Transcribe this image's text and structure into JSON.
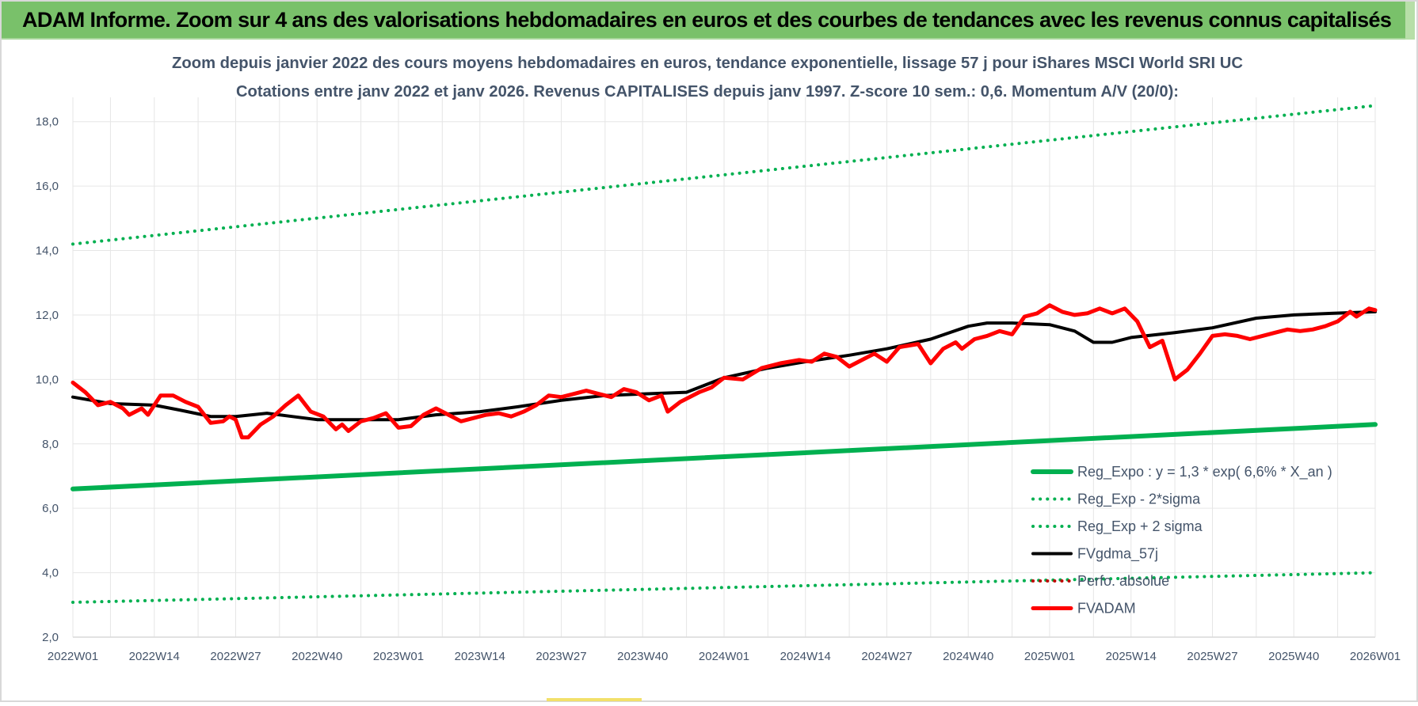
{
  "banner": {
    "title": "ADAM Informe. Zoom sur 4 ans des valorisations hebdomadaires en euros et des courbes de tendances avec les revenus connus capitalisés",
    "color": "#79c16a"
  },
  "chart_data": {
    "type": "line",
    "title": "Zoom depuis janvier 2022 des cours moyens hebdomadaires en euros, tendance exponentielle, lissage 57 j pour iShares MSCI World SRI UC",
    "subtitle": "Cotations entre janv 2022 et janv 2026. Revenus CAPITALISES depuis janv 1997. Z-score 10 sem.: 0,6. Momentum A/V (20/0):",
    "xlabel": "",
    "ylabel": "",
    "ylim": [
      2.0,
      19.0
    ],
    "yticks": [
      "2,0",
      "4,0",
      "6,0",
      "8,0",
      "10,0",
      "12,0",
      "14,0",
      "16,0",
      "18,0"
    ],
    "xticks": [
      "2022W01",
      "2022W14",
      "2022W27",
      "2022W40",
      "2023W01",
      "2023W14",
      "2023W27",
      "2023W40",
      "2024W01",
      "2024W14",
      "2024W27",
      "2024W40",
      "2025W01",
      "2025W14",
      "2025W27",
      "2025W40",
      "2026W01"
    ],
    "grid": true,
    "legend_position": "bottom-right",
    "x_weeks": [
      0,
      6,
      13,
      20,
      26,
      33,
      39,
      46,
      52,
      59,
      65,
      72,
      78,
      85,
      91,
      98,
      104,
      111,
      117,
      124,
      130,
      137,
      143,
      150,
      156,
      163,
      169,
      176,
      182,
      189,
      195,
      202,
      208
    ],
    "series": [
      {
        "name": "Reg_Expo : y = 1,3 * exp( 6,6% *  X_an )",
        "style": "solid",
        "color": "#00b050",
        "width": 6,
        "points": [
          [
            0,
            6.6
          ],
          [
            208,
            8.6
          ]
        ]
      },
      {
        "name": "Reg_Exp - 2*sigma",
        "style": "dotted",
        "color": "#00b050",
        "width": 4,
        "points": [
          [
            0,
            3.08
          ],
          [
            208,
            4.0
          ]
        ]
      },
      {
        "name": "Reg_Exp + 2 sigma",
        "style": "dotted",
        "color": "#00b050",
        "width": 4,
        "points": [
          [
            0,
            14.2
          ],
          [
            208,
            18.5
          ]
        ]
      },
      {
        "name": "FVgdma_57j",
        "style": "solid",
        "color": "#000000",
        "width": 4,
        "points": [
          [
            0,
            9.45
          ],
          [
            6,
            9.25
          ],
          [
            13,
            9.2
          ],
          [
            17,
            9.05
          ],
          [
            22,
            8.85
          ],
          [
            26,
            8.85
          ],
          [
            31,
            8.95
          ],
          [
            35,
            8.85
          ],
          [
            39,
            8.75
          ],
          [
            44,
            8.75
          ],
          [
            52,
            8.75
          ],
          [
            58,
            8.9
          ],
          [
            65,
            9.0
          ],
          [
            71,
            9.15
          ],
          [
            78,
            9.35
          ],
          [
            85,
            9.5
          ],
          [
            91,
            9.55
          ],
          [
            98,
            9.6
          ],
          [
            104,
            10.05
          ],
          [
            111,
            10.35
          ],
          [
            117,
            10.55
          ],
          [
            124,
            10.75
          ],
          [
            130,
            10.95
          ],
          [
            137,
            11.25
          ],
          [
            143,
            11.65
          ],
          [
            146,
            11.75
          ],
          [
            150,
            11.75
          ],
          [
            156,
            11.7
          ],
          [
            160,
            11.5
          ],
          [
            163,
            11.15
          ],
          [
            166,
            11.15
          ],
          [
            169,
            11.3
          ],
          [
            176,
            11.45
          ],
          [
            182,
            11.6
          ],
          [
            189,
            11.9
          ],
          [
            195,
            12.0
          ],
          [
            201,
            12.05
          ],
          [
            208,
            12.1
          ]
        ]
      },
      {
        "name": "Perfo. absolue",
        "style": "dotted",
        "color": "#c00000",
        "width": 4,
        "points": []
      },
      {
        "name": "FVADAM",
        "style": "solid",
        "color": "#ff0000",
        "width": 5,
        "points": [
          [
            0,
            9.9
          ],
          [
            2,
            9.6
          ],
          [
            4,
            9.2
          ],
          [
            6,
            9.3
          ],
          [
            8,
            9.1
          ],
          [
            9,
            8.9
          ],
          [
            11,
            9.1
          ],
          [
            12,
            8.9
          ],
          [
            14,
            9.5
          ],
          [
            16,
            9.5
          ],
          [
            18,
            9.3
          ],
          [
            20,
            9.15
          ],
          [
            22,
            8.65
          ],
          [
            24,
            8.7
          ],
          [
            25,
            8.85
          ],
          [
            26,
            8.75
          ],
          [
            27,
            8.2
          ],
          [
            28,
            8.2
          ],
          [
            30,
            8.6
          ],
          [
            32,
            8.85
          ],
          [
            34,
            9.2
          ],
          [
            36,
            9.5
          ],
          [
            38,
            9.0
          ],
          [
            40,
            8.85
          ],
          [
            42,
            8.45
          ],
          [
            43,
            8.6
          ],
          [
            44,
            8.4
          ],
          [
            46,
            8.7
          ],
          [
            48,
            8.8
          ],
          [
            50,
            8.95
          ],
          [
            52,
            8.5
          ],
          [
            54,
            8.55
          ],
          [
            56,
            8.9
          ],
          [
            58,
            9.1
          ],
          [
            60,
            8.9
          ],
          [
            62,
            8.7
          ],
          [
            64,
            8.8
          ],
          [
            66,
            8.9
          ],
          [
            68,
            8.95
          ],
          [
            70,
            8.85
          ],
          [
            72,
            9.0
          ],
          [
            74,
            9.2
          ],
          [
            76,
            9.5
          ],
          [
            78,
            9.45
          ],
          [
            80,
            9.55
          ],
          [
            82,
            9.65
          ],
          [
            84,
            9.55
          ],
          [
            86,
            9.45
          ],
          [
            88,
            9.7
          ],
          [
            90,
            9.6
          ],
          [
            92,
            9.35
          ],
          [
            94,
            9.5
          ],
          [
            95,
            9.0
          ],
          [
            97,
            9.3
          ],
          [
            100,
            9.6
          ],
          [
            102,
            9.75
          ],
          [
            104,
            10.05
          ],
          [
            107,
            10.0
          ],
          [
            110,
            10.35
          ],
          [
            113,
            10.5
          ],
          [
            116,
            10.6
          ],
          [
            118,
            10.55
          ],
          [
            120,
            10.8
          ],
          [
            122,
            10.7
          ],
          [
            124,
            10.4
          ],
          [
            126,
            10.6
          ],
          [
            128,
            10.8
          ],
          [
            130,
            10.55
          ],
          [
            132,
            11.0
          ],
          [
            135,
            11.1
          ],
          [
            137,
            10.5
          ],
          [
            139,
            10.95
          ],
          [
            141,
            11.15
          ],
          [
            142,
            10.95
          ],
          [
            144,
            11.25
          ],
          [
            146,
            11.35
          ],
          [
            148,
            11.5
          ],
          [
            150,
            11.4
          ],
          [
            152,
            11.95
          ],
          [
            154,
            12.05
          ],
          [
            156,
            12.3
          ],
          [
            158,
            12.1
          ],
          [
            160,
            12.0
          ],
          [
            162,
            12.05
          ],
          [
            164,
            12.2
          ],
          [
            166,
            12.05
          ],
          [
            168,
            12.2
          ],
          [
            170,
            11.8
          ],
          [
            172,
            11.0
          ],
          [
            174,
            11.2
          ],
          [
            175,
            10.6
          ],
          [
            176,
            10.0
          ],
          [
            178,
            10.3
          ],
          [
            180,
            10.8
          ],
          [
            182,
            11.35
          ],
          [
            184,
            11.4
          ],
          [
            186,
            11.35
          ],
          [
            188,
            11.25
          ],
          [
            190,
            11.35
          ],
          [
            192,
            11.45
          ],
          [
            194,
            11.55
          ],
          [
            196,
            11.5
          ],
          [
            198,
            11.55
          ],
          [
            200,
            11.65
          ],
          [
            202,
            11.8
          ],
          [
            204,
            12.1
          ],
          [
            205,
            11.95
          ],
          [
            207,
            12.2
          ],
          [
            208,
            12.15
          ]
        ]
      }
    ]
  }
}
